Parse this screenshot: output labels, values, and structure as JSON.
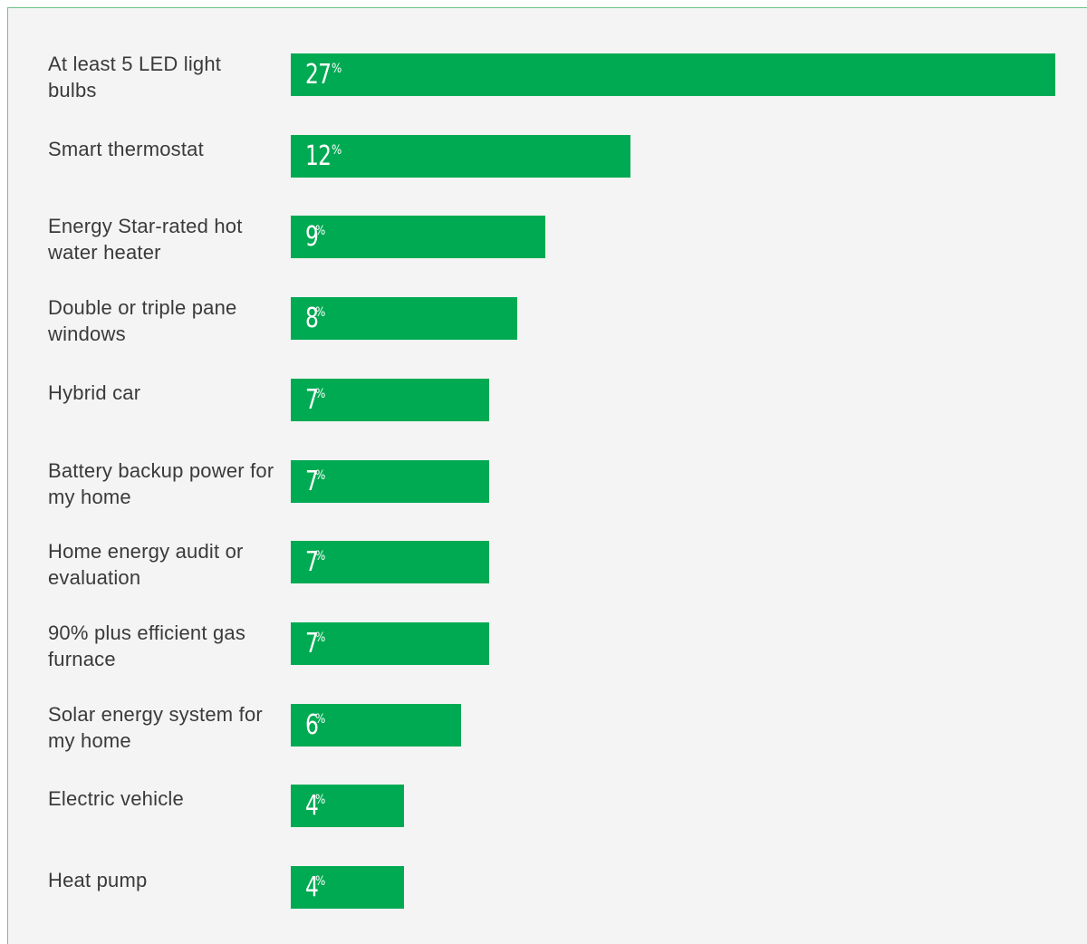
{
  "colors": {
    "bar": "#00aa52",
    "background": "#f4f4f4",
    "label": "#3a3a3a",
    "value_text": "#ffffff"
  },
  "chart_data": {
    "type": "bar",
    "orientation": "horizontal",
    "title": "",
    "xlabel": "",
    "ylabel": "",
    "unit": "%",
    "xlim": [
      0,
      27
    ],
    "grid": false,
    "categories": [
      "At least 5 LED light bulbs",
      "Smart thermostat",
      "Energy Star-rated hot water heater",
      "Double or triple pane windows",
      "Hybrid car",
      "Battery backup power for my home",
      "Home energy audit or evaluation",
      "90% plus efficient gas furnace",
      "Solar energy system for my home",
      "Electric vehicle",
      "Heat pump"
    ],
    "values": [
      27,
      12,
      9,
      8,
      7,
      7,
      7,
      7,
      6,
      4,
      4
    ]
  }
}
